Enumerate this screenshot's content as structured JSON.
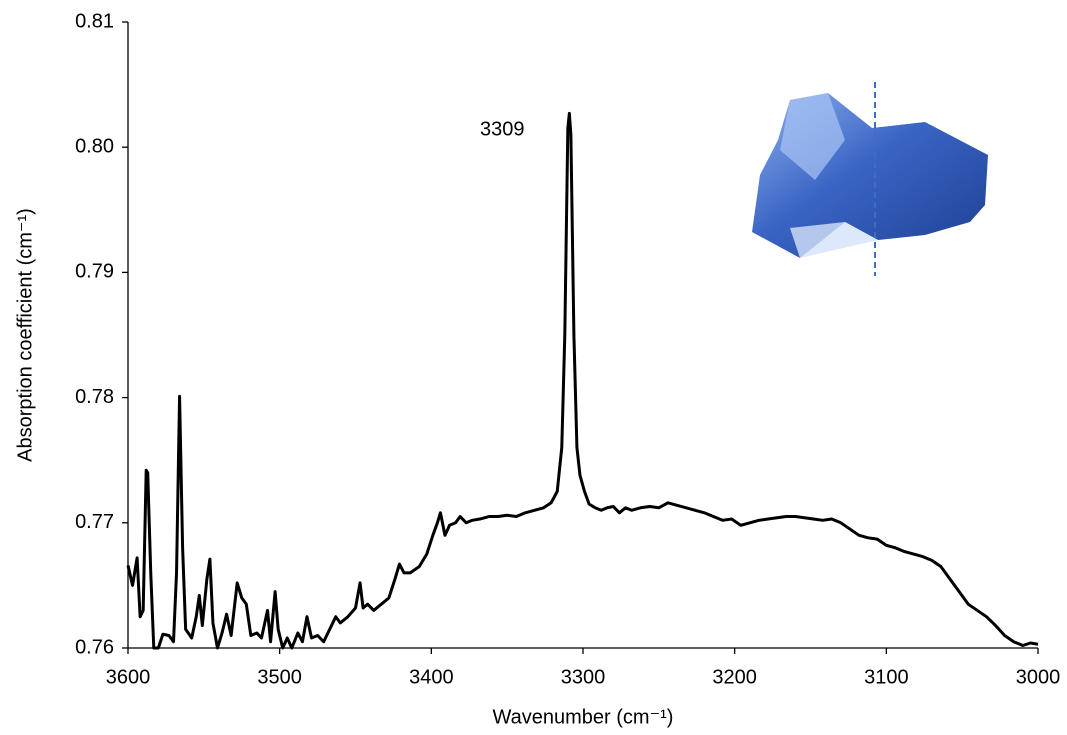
{
  "chart_data": {
    "type": "line",
    "x_label": "Wavenumber (cm⁻¹)",
    "y_label": "Absorption coefficient (cm⁻¹)",
    "annotation": "3309",
    "color": "#000000",
    "xlim": [
      3600,
      3000
    ],
    "xticks": [
      3600,
      3500,
      3400,
      3300,
      3200,
      3100,
      3000
    ],
    "ylim": [
      0.76,
      0.81
    ],
    "yticks": [
      0.76,
      0.77,
      0.78,
      0.79,
      {
        "value": 0.8,
        "label": "0.80"
      },
      0.81
    ],
    "x": [
      3600,
      3597,
      3594,
      3592,
      3590,
      3588,
      3587,
      3585,
      3583,
      3580,
      3577,
      3573,
      3570,
      3568,
      3566,
      3564,
      3562,
      3558,
      3555,
      3553,
      3551,
      3548,
      3546,
      3544,
      3541,
      3538,
      3535,
      3532,
      3528,
      3525,
      3522,
      3519,
      3515,
      3512,
      3508,
      3506,
      3503,
      3501,
      3498,
      3495,
      3492,
      3488,
      3485,
      3482,
      3479,
      3475,
      3471,
      3467,
      3463,
      3460,
      3455,
      3450,
      3447,
      3445,
      3442,
      3438,
      3433,
      3428,
      3424,
      3421,
      3418,
      3414,
      3408,
      3403,
      3399,
      3396,
      3394,
      3391,
      3388,
      3384,
      3381,
      3377,
      3373,
      3368,
      3362,
      3356,
      3350,
      3344,
      3338,
      3332,
      3326,
      3321,
      3317,
      3314,
      3312,
      3310,
      3309,
      3308,
      3306,
      3304,
      3302,
      3299,
      3296,
      3292,
      3288,
      3284,
      3280,
      3276,
      3272,
      3268,
      3262,
      3256,
      3250,
      3244,
      3238,
      3232,
      3226,
      3220,
      3214,
      3208,
      3202,
      3196,
      3190,
      3184,
      3178,
      3172,
      3166,
      3160,
      3154,
      3148,
      3142,
      3136,
      3130,
      3124,
      3118,
      3112,
      3106,
      3100,
      3094,
      3088,
      3082,
      3076,
      3070,
      3064,
      3058,
      3052,
      3046,
      3040,
      3034,
      3028,
      3022,
      3016,
      3010,
      3005,
      3000
    ],
    "values": [
      0.7666,
      0.765,
      0.7672,
      0.7625,
      0.763,
      0.7742,
      0.774,
      0.766,
      0.76,
      0.76,
      0.7611,
      0.761,
      0.7605,
      0.766,
      0.7801,
      0.768,
      0.7615,
      0.7608,
      0.7625,
      0.7642,
      0.7618,
      0.7655,
      0.7671,
      0.762,
      0.76,
      0.7612,
      0.7627,
      0.761,
      0.7652,
      0.764,
      0.7635,
      0.761,
      0.7612,
      0.7608,
      0.763,
      0.7605,
      0.7645,
      0.7615,
      0.76,
      0.7608,
      0.76,
      0.7612,
      0.7605,
      0.7625,
      0.7608,
      0.761,
      0.7605,
      0.7615,
      0.7625,
      0.762,
      0.7625,
      0.7632,
      0.7652,
      0.7632,
      0.7635,
      0.763,
      0.7635,
      0.764,
      0.7655,
      0.7667,
      0.766,
      0.766,
      0.7665,
      0.7675,
      0.769,
      0.77,
      0.7708,
      0.769,
      0.7698,
      0.77,
      0.7705,
      0.77,
      0.7702,
      0.7703,
      0.7705,
      0.7705,
      0.7706,
      0.7705,
      0.7708,
      0.771,
      0.7712,
      0.7716,
      0.7725,
      0.776,
      0.785,
      0.8015,
      0.8027,
      0.801,
      0.785,
      0.776,
      0.7738,
      0.7725,
      0.7715,
      0.7712,
      0.771,
      0.7712,
      0.7713,
      0.7708,
      0.7712,
      0.771,
      0.7712,
      0.7713,
      0.7712,
      0.7716,
      0.7714,
      0.7712,
      0.771,
      0.7708,
      0.7705,
      0.7702,
      0.7703,
      0.7698,
      0.77,
      0.7702,
      0.7703,
      0.7704,
      0.7705,
      0.7705,
      0.7704,
      0.7703,
      0.7702,
      0.7703,
      0.77,
      0.7695,
      0.769,
      0.7688,
      0.7687,
      0.7682,
      0.768,
      0.7677,
      0.7675,
      0.7673,
      0.767,
      0.7665,
      0.7655,
      0.7645,
      0.7635,
      0.763,
      0.7625,
      0.7618,
      0.761,
      0.7605,
      0.7602,
      0.7604,
      0.7603
    ]
  }
}
